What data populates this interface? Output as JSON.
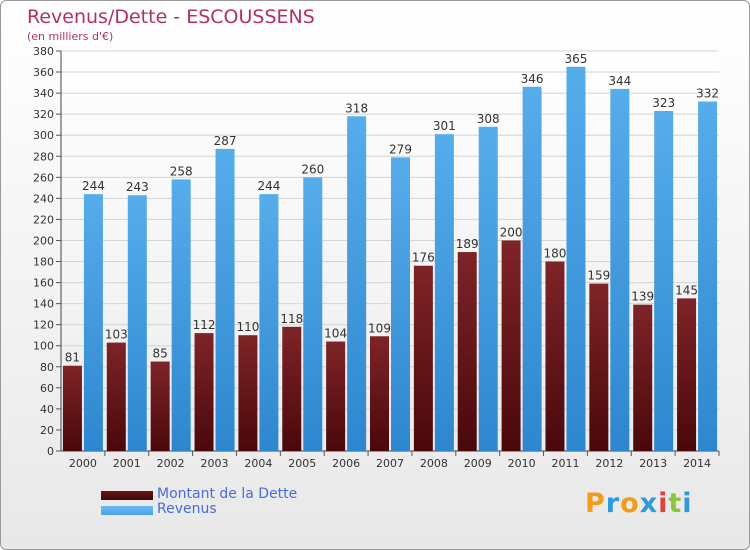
{
  "header": {
    "title": "Revenus/Dette - ESCOUSSENS",
    "subtitle": "(en milliers d'€)"
  },
  "brand": {
    "letters": [
      "P",
      "r",
      "o",
      "x",
      "i",
      "t",
      "i"
    ],
    "colors": [
      "#f29b1d",
      "#2b9be0",
      "#f29b1d",
      "#2b9be0",
      "#e2403a",
      "#8cc63e",
      "#2b9be0"
    ]
  },
  "chart_data": {
    "type": "bar",
    "title": "Revenus/Dette - ESCOUSSENS",
    "subtitle": "(en milliers d'€)",
    "categories": [
      "2000",
      "2001",
      "2002",
      "2003",
      "2004",
      "2005",
      "2006",
      "2007",
      "2008",
      "2009",
      "2010",
      "2011",
      "2012",
      "2013",
      "2014"
    ],
    "series": [
      {
        "name": "Montant de la Dette",
        "color": "#6b1418",
        "values": [
          81,
          103,
          85,
          112,
          110,
          118,
          104,
          109,
          176,
          189,
          200,
          180,
          159,
          139,
          145
        ]
      },
      {
        "name": "Revenus",
        "color": "#4aa3e6",
        "values": [
          244,
          243,
          258,
          287,
          244,
          260,
          318,
          279,
          301,
          308,
          346,
          365,
          344,
          323,
          332
        ]
      }
    ],
    "ylim": [
      0,
      380
    ],
    "yticks": [
      0,
      20,
      40,
      60,
      80,
      100,
      120,
      140,
      160,
      180,
      200,
      220,
      240,
      260,
      280,
      300,
      320,
      340,
      360,
      380
    ],
    "grid": true,
    "legend_position": "bottom-left"
  }
}
